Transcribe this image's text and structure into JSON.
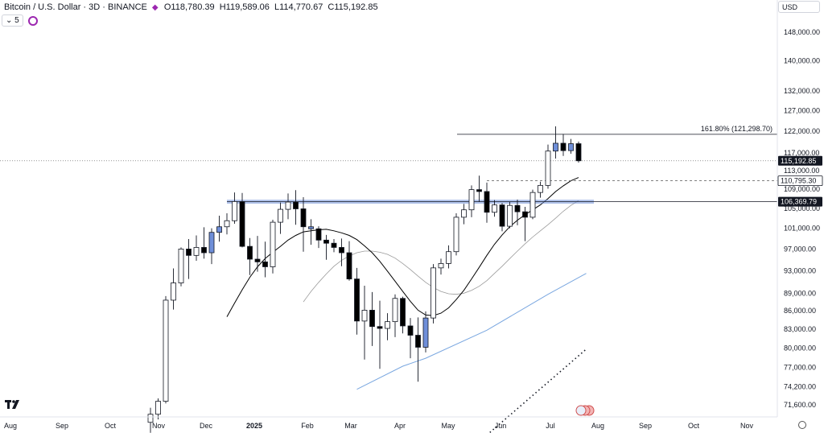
{
  "header": {
    "symbol": "Bitcoin / U.S. Dollar · 3D · BINANCE",
    "open": "O118,780.39",
    "high": "H119,589.06",
    "low": "L114,770.67",
    "close": "C115,192.85",
    "indicator_collapse": "5",
    "currency": "USD"
  },
  "colors": {
    "up": "#ffffff",
    "down": "#000000",
    "highlight": "#6f8fd9",
    "sma_fast": "#000000",
    "sma_mid": "#9a9a9a",
    "sma_slow": "#7aa7e0",
    "support_band": "#6f8fd9",
    "price_label_bg": "#131722"
  },
  "chart_data": {
    "type": "candlestick",
    "title": "Bitcoin / U.S. Dollar · 3D · BINANCE",
    "y_scale": "log",
    "x_months": [
      "Aug",
      "Sep",
      "Oct",
      "Nov",
      "Dec",
      "2025",
      "Feb",
      "Mar",
      "Apr",
      "May",
      "Jun",
      "Jul",
      "Aug",
      "Sep",
      "Oct",
      "Nov"
    ],
    "y_ticks": [
      "148,000.00",
      "140,000.00",
      "132,000.00",
      "127,000.00",
      "122,000.00",
      "117,000.00",
      "113,000.00",
      "109,000.00",
      "105,000.00",
      "101,000.00",
      "97,000.00",
      "93,000.00",
      "89,000.00",
      "86,000.00",
      "83,000.00",
      "80,000.00",
      "77,000.00",
      "74,200.00",
      "71,600.00"
    ],
    "price_labels": [
      {
        "value": 115192.85,
        "text": "115,192.85",
        "style": "dark"
      },
      {
        "value": 110795.3,
        "text": "110,795.30",
        "style": "light"
      },
      {
        "value": 106369.79,
        "text": "106,369.79",
        "style": "dark"
      }
    ],
    "fib_label": "161.80% (121,298.70)",
    "fib_value": 121298.7,
    "ohlc_note": "open, high, low, close per 3-day candle",
    "candles": [
      [
        69200,
        71200,
        67800,
        70300
      ],
      [
        70300,
        72500,
        69600,
        72100
      ],
      [
        72100,
        88500,
        71800,
        87800
      ],
      [
        87800,
        93400,
        86200,
        90800
      ],
      [
        90800,
        97300,
        90200,
        97000
      ],
      [
        97000,
        98900,
        91500,
        95800
      ],
      [
        95800,
        99600,
        94800,
        97300
      ],
      [
        97300,
        101200,
        95200,
        96300
      ],
      [
        96300,
        101000,
        94200,
        100200
      ],
      [
        100200,
        103500,
        98400,
        101300
      ],
      [
        101300,
        104000,
        99800,
        102500
      ],
      [
        102500,
        108300,
        101900,
        106400
      ],
      [
        106400,
        108200,
        97300,
        97500
      ],
      [
        97500,
        99100,
        92200,
        95100
      ],
      [
        95100,
        99500,
        92800,
        94600
      ],
      [
        94600,
        98400,
        91800,
        93700
      ],
      [
        93700,
        102700,
        92500,
        102200
      ],
      [
        102200,
        106200,
        99900,
        104800
      ],
      [
        104800,
        108100,
        102800,
        106300
      ],
      [
        106300,
        108800,
        101700,
        104900
      ],
      [
        104900,
        107300,
        96500,
        101300
      ],
      [
        101300,
        102800,
        97800,
        100900
      ],
      [
        100900,
        101400,
        97200,
        98700
      ],
      [
        98700,
        99700,
        95000,
        98100
      ],
      [
        98100,
        98900,
        96400,
        97300
      ],
      [
        97300,
        99000,
        93800,
        96300
      ],
      [
        96300,
        98500,
        91200,
        91500
      ],
      [
        91500,
        93500,
        82100,
        84300
      ],
      [
        84300,
        90300,
        78200,
        86100
      ],
      [
        86100,
        89200,
        80300,
        83400
      ],
      [
        83400,
        87700,
        76800,
        83100
      ],
      [
        83100,
        85600,
        81200,
        84200
      ],
      [
        84200,
        88800,
        81700,
        88100
      ],
      [
        88100,
        88400,
        82300,
        83500
      ],
      [
        83500,
        84800,
        78400,
        82000
      ],
      [
        82000,
        84900,
        74900,
        80100
      ],
      [
        80100,
        85900,
        79300,
        84800
      ],
      [
        84800,
        94200,
        83900,
        93500
      ],
      [
        93500,
        95200,
        92300,
        94300
      ],
      [
        94300,
        97700,
        93400,
        96500
      ],
      [
        96500,
        104000,
        95800,
        103200
      ],
      [
        103200,
        105900,
        101800,
        104700
      ],
      [
        104700,
        109800,
        103200,
        108900
      ],
      [
        108900,
        111900,
        106300,
        108500
      ],
      [
        108500,
        110400,
        102100,
        104200
      ],
      [
        104200,
        106700,
        103300,
        105700
      ],
      [
        105700,
        106100,
        100400,
        101400
      ],
      [
        101400,
        106300,
        101000,
        105600
      ],
      [
        105600,
        106800,
        101600,
        104300
      ],
      [
        104300,
        105300,
        98500,
        103200
      ],
      [
        103200,
        108900,
        102800,
        108300
      ],
      [
        108300,
        110600,
        107200,
        109800
      ],
      [
        109800,
        118900,
        109100,
        117400
      ],
      [
        117400,
        123200,
        115700,
        119200
      ],
      [
        119200,
        121400,
        116300,
        117500
      ],
      [
        117500,
        120200,
        116800,
        119100
      ],
      [
        119100,
        119600,
        114800,
        115200
      ]
    ],
    "highlighted_candles": [
      8,
      9,
      21,
      36,
      53,
      55
    ],
    "sma_fast": [
      null,
      null,
      null,
      null,
      null,
      null,
      null,
      null,
      null,
      null,
      85000,
      87300,
      89600,
      91800,
      93700,
      95200,
      96400,
      97500,
      98700,
      99600,
      100300,
      100500,
      100700,
      100800,
      100500,
      100100,
      99600,
      98800,
      97600,
      96300,
      94700,
      92900,
      91100,
      89300,
      87600,
      86100,
      85300,
      85200,
      85600,
      86500,
      87900,
      89500,
      91500,
      93600,
      95800,
      97900,
      99700,
      101300,
      102600,
      103700,
      104700,
      105700,
      107000,
      108500,
      109700,
      110800,
      111500
    ],
    "sma_mid": [
      null,
      null,
      null,
      null,
      null,
      null,
      null,
      null,
      null,
      null,
      null,
      null,
      null,
      null,
      null,
      null,
      null,
      null,
      null,
      null,
      87500,
      89300,
      90900,
      92400,
      93800,
      94900,
      95700,
      96300,
      96600,
      96600,
      96400,
      96000,
      95300,
      94300,
      93200,
      92000,
      90900,
      90000,
      89300,
      88900,
      88800,
      89000,
      89500,
      90200,
      91200,
      92500,
      93800,
      95200,
      96600,
      98000,
      99300,
      100500,
      101700,
      103000,
      104400,
      105600,
      106600
    ],
    "sma_slow_points": [
      [
        27,
        73800
      ],
      [
        33,
        77200
      ],
      [
        36,
        78400
      ],
      [
        44,
        82800
      ],
      [
        52,
        88800
      ],
      [
        57,
        92500
      ]
    ],
    "dotted_trend": [
      [
        44,
        67500
      ],
      [
        57,
        79800
      ]
    ],
    "reference_lines": {
      "current": 115192.85,
      "dashed": 110795.3,
      "band": 106369.79
    }
  }
}
